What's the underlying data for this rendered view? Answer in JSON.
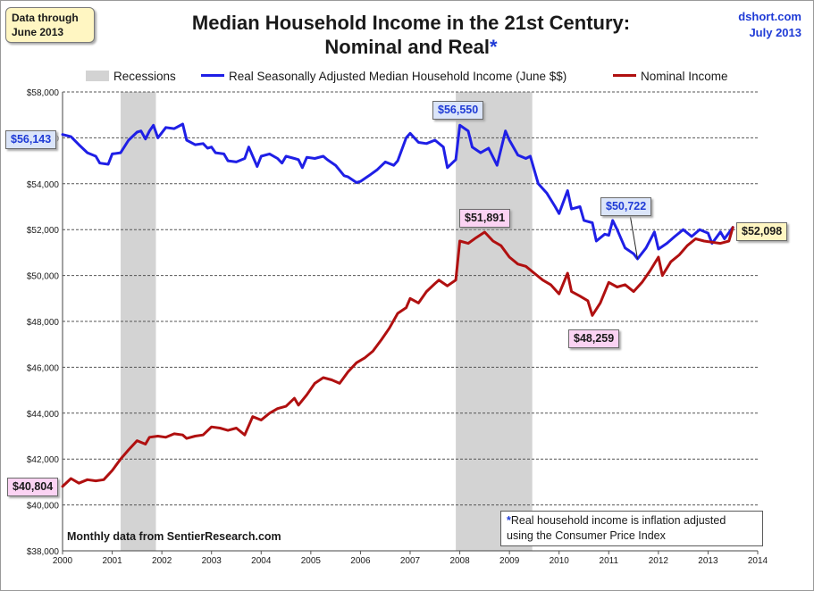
{
  "header": {
    "title_line1": "Median Household Income in the 21st Century:",
    "title_line2": "Nominal and Real",
    "title_star": "*",
    "note_line1": "Data through",
    "note_line2": "June 2013",
    "source_line1": "dshort.com",
    "source_line2": "July 2013"
  },
  "footnote": {
    "star": "*",
    "line1": "Real household  income is inflation adjusted",
    "line2": "using  the Consumer Price Index"
  },
  "monthly_note": "Monthly data from SentierResearch.com",
  "callouts": {
    "real_start": "$56,143",
    "real_peak": "$56,550",
    "real_low": "$50,722",
    "nominal_start": "$40,804",
    "nominal_peak": "$51,891",
    "nominal_low": "$48,259",
    "latest": "$52,098"
  },
  "colors": {
    "real": "#1f1fe6",
    "nominal": "#b01010",
    "recession": "#d3d3d3",
    "grid": "#555555"
  },
  "chart_data": {
    "type": "line",
    "title": "Median Household Income in the 21st Century: Nominal and Real*",
    "xlim": [
      2000,
      2014
    ],
    "ylim": [
      38000,
      58000
    ],
    "x_ticks": [
      "2000",
      "2001",
      "2002",
      "2003",
      "2004",
      "2005",
      "2006",
      "2007",
      "2008",
      "2009",
      "2010",
      "2011",
      "2012",
      "2013",
      "2014"
    ],
    "y_ticks": [
      "$38,000",
      "$40,000",
      "$42,000",
      "$44,000",
      "$46,000",
      "$48,000",
      "$50,000",
      "$52,000",
      "$54,000",
      "$56,000",
      "$58,000"
    ],
    "grid": "horizontal dashed",
    "legend_position": "top",
    "recessions": [
      {
        "start": 2001.17,
        "end": 2001.88
      },
      {
        "start": 2007.92,
        "end": 2009.46
      }
    ],
    "legend": {
      "recessions": "Recessions",
      "real": "Real Seasonally Adjusted Median Household Income (June $$)",
      "nominal": "Nominal Income"
    },
    "series": [
      {
        "name": "Real Seasonally Adjusted Median Household Income (June $$)",
        "key": "real",
        "points": [
          [
            2000.0,
            56143
          ],
          [
            2000.17,
            56050
          ],
          [
            2000.33,
            55700
          ],
          [
            2000.5,
            55350
          ],
          [
            2000.67,
            55200
          ],
          [
            2000.75,
            54900
          ],
          [
            2000.92,
            54850
          ],
          [
            2001.0,
            55300
          ],
          [
            2001.17,
            55350
          ],
          [
            2001.33,
            55900
          ],
          [
            2001.5,
            56250
          ],
          [
            2001.58,
            56300
          ],
          [
            2001.67,
            55950
          ],
          [
            2001.75,
            56300
          ],
          [
            2001.83,
            56550
          ],
          [
            2001.92,
            56000
          ],
          [
            2002.08,
            56450
          ],
          [
            2002.25,
            56400
          ],
          [
            2002.42,
            56600
          ],
          [
            2002.5,
            55900
          ],
          [
            2002.67,
            55700
          ],
          [
            2002.83,
            55750
          ],
          [
            2002.92,
            55550
          ],
          [
            2003.0,
            55600
          ],
          [
            2003.08,
            55350
          ],
          [
            2003.25,
            55300
          ],
          [
            2003.33,
            55000
          ],
          [
            2003.5,
            54950
          ],
          [
            2003.67,
            55100
          ],
          [
            2003.75,
            55600
          ],
          [
            2003.92,
            54750
          ],
          [
            2004.0,
            55200
          ],
          [
            2004.17,
            55300
          ],
          [
            2004.33,
            55100
          ],
          [
            2004.42,
            54900
          ],
          [
            2004.5,
            55200
          ],
          [
            2004.67,
            55100
          ],
          [
            2004.75,
            55050
          ],
          [
            2004.83,
            54700
          ],
          [
            2004.92,
            55150
          ],
          [
            2005.08,
            55100
          ],
          [
            2005.25,
            55200
          ],
          [
            2005.33,
            55050
          ],
          [
            2005.5,
            54800
          ],
          [
            2005.67,
            54350
          ],
          [
            2005.75,
            54300
          ],
          [
            2005.92,
            54050
          ],
          [
            2006.0,
            54100
          ],
          [
            2006.17,
            54350
          ],
          [
            2006.33,
            54600
          ],
          [
            2006.5,
            54950
          ],
          [
            2006.67,
            54800
          ],
          [
            2006.75,
            55000
          ],
          [
            2006.92,
            56000
          ],
          [
            2007.0,
            56200
          ],
          [
            2007.17,
            55800
          ],
          [
            2007.33,
            55750
          ],
          [
            2007.5,
            55900
          ],
          [
            2007.67,
            55600
          ],
          [
            2007.75,
            54700
          ],
          [
            2007.92,
            55050
          ],
          [
            2008.0,
            56550
          ],
          [
            2008.17,
            56300
          ],
          [
            2008.25,
            55600
          ],
          [
            2008.42,
            55350
          ],
          [
            2008.58,
            55550
          ],
          [
            2008.75,
            54800
          ],
          [
            2008.92,
            56300
          ],
          [
            2009.0,
            55900
          ],
          [
            2009.17,
            55250
          ],
          [
            2009.33,
            55100
          ],
          [
            2009.42,
            55200
          ],
          [
            2009.58,
            54000
          ],
          [
            2009.75,
            53600
          ],
          [
            2009.92,
            53000
          ],
          [
            2010.0,
            52700
          ],
          [
            2010.17,
            53700
          ],
          [
            2010.25,
            52900
          ],
          [
            2010.42,
            53000
          ],
          [
            2010.5,
            52400
          ],
          [
            2010.67,
            52300
          ],
          [
            2010.75,
            51500
          ],
          [
            2010.92,
            51800
          ],
          [
            2011.0,
            51750
          ],
          [
            2011.08,
            52400
          ],
          [
            2011.17,
            52000
          ],
          [
            2011.33,
            51200
          ],
          [
            2011.5,
            50950
          ],
          [
            2011.58,
            50722
          ],
          [
            2011.75,
            51200
          ],
          [
            2011.92,
            51900
          ],
          [
            2012.0,
            51150
          ],
          [
            2012.17,
            51400
          ],
          [
            2012.33,
            51700
          ],
          [
            2012.5,
            52000
          ],
          [
            2012.67,
            51700
          ],
          [
            2012.83,
            52000
          ],
          [
            2013.0,
            51850
          ],
          [
            2013.08,
            51400
          ],
          [
            2013.25,
            51900
          ],
          [
            2013.33,
            51600
          ],
          [
            2013.5,
            52098
          ]
        ]
      },
      {
        "name": "Nominal Income",
        "key": "nominal",
        "points": [
          [
            2000.0,
            40804
          ],
          [
            2000.17,
            41150
          ],
          [
            2000.33,
            40950
          ],
          [
            2000.5,
            41100
          ],
          [
            2000.67,
            41050
          ],
          [
            2000.83,
            41100
          ],
          [
            2001.0,
            41500
          ],
          [
            2001.17,
            42000
          ],
          [
            2001.33,
            42400
          ],
          [
            2001.5,
            42800
          ],
          [
            2001.67,
            42650
          ],
          [
            2001.75,
            42950
          ],
          [
            2001.92,
            43000
          ],
          [
            2002.08,
            42950
          ],
          [
            2002.25,
            43100
          ],
          [
            2002.42,
            43050
          ],
          [
            2002.5,
            42900
          ],
          [
            2002.67,
            43000
          ],
          [
            2002.83,
            43050
          ],
          [
            2003.0,
            43400
          ],
          [
            2003.17,
            43350
          ],
          [
            2003.33,
            43250
          ],
          [
            2003.5,
            43350
          ],
          [
            2003.67,
            43050
          ],
          [
            2003.83,
            43850
          ],
          [
            2004.0,
            43700
          ],
          [
            2004.17,
            44000
          ],
          [
            2004.33,
            44200
          ],
          [
            2004.5,
            44300
          ],
          [
            2004.67,
            44650
          ],
          [
            2004.75,
            44350
          ],
          [
            2004.92,
            44800
          ],
          [
            2005.08,
            45300
          ],
          [
            2005.25,
            45550
          ],
          [
            2005.42,
            45450
          ],
          [
            2005.58,
            45300
          ],
          [
            2005.75,
            45800
          ],
          [
            2005.92,
            46200
          ],
          [
            2006.08,
            46400
          ],
          [
            2006.25,
            46700
          ],
          [
            2006.42,
            47200
          ],
          [
            2006.58,
            47700
          ],
          [
            2006.75,
            48350
          ],
          [
            2006.92,
            48600
          ],
          [
            2007.0,
            49000
          ],
          [
            2007.17,
            48800
          ],
          [
            2007.33,
            49300
          ],
          [
            2007.5,
            49650
          ],
          [
            2007.58,
            49800
          ],
          [
            2007.75,
            49550
          ],
          [
            2007.92,
            49800
          ],
          [
            2008.0,
            51500
          ],
          [
            2008.17,
            51400
          ],
          [
            2008.33,
            51650
          ],
          [
            2008.5,
            51891
          ],
          [
            2008.67,
            51500
          ],
          [
            2008.83,
            51300
          ],
          [
            2009.0,
            50800
          ],
          [
            2009.17,
            50500
          ],
          [
            2009.33,
            50400
          ],
          [
            2009.5,
            50100
          ],
          [
            2009.67,
            49800
          ],
          [
            2009.83,
            49600
          ],
          [
            2010.0,
            49200
          ],
          [
            2010.17,
            50100
          ],
          [
            2010.25,
            49300
          ],
          [
            2010.42,
            49100
          ],
          [
            2010.58,
            48900
          ],
          [
            2010.67,
            48259
          ],
          [
            2010.83,
            48800
          ],
          [
            2011.0,
            49700
          ],
          [
            2011.17,
            49500
          ],
          [
            2011.33,
            49600
          ],
          [
            2011.5,
            49300
          ],
          [
            2011.67,
            49700
          ],
          [
            2011.83,
            50200
          ],
          [
            2012.0,
            50800
          ],
          [
            2012.08,
            50000
          ],
          [
            2012.25,
            50600
          ],
          [
            2012.42,
            50900
          ],
          [
            2012.58,
            51300
          ],
          [
            2012.75,
            51600
          ],
          [
            2012.92,
            51500
          ],
          [
            2013.08,
            51450
          ],
          [
            2013.25,
            51400
          ],
          [
            2013.42,
            51500
          ],
          [
            2013.5,
            52098
          ]
        ]
      }
    ]
  }
}
